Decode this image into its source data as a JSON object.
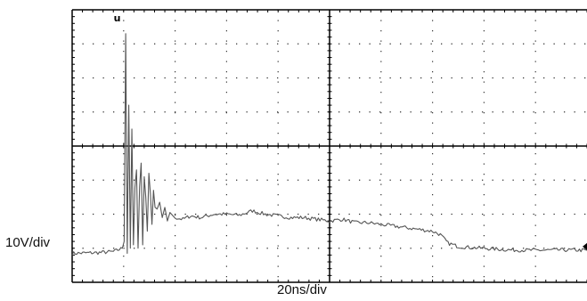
{
  "chart_data": {
    "type": "line",
    "title": "",
    "xlabel": "20ns/div",
    "ylabel": "10V/div",
    "grid": true,
    "grid_divisions": {
      "x": 10,
      "y": 8
    },
    "xlim": [
      0,
      200
    ],
    "ylim": [
      -40,
      40
    ],
    "x_unit": "ns",
    "y_unit": "V",
    "trigger_marker": "u",
    "colors": {
      "trace": "#555555",
      "grid_dots": "#333333",
      "frame": "#000000"
    },
    "series": [
      {
        "name": "",
        "x": [
          0,
          10,
          16,
          19.5,
          20.2,
          20.8,
          21.4,
          22.0,
          22.6,
          23.2,
          23.8,
          24.4,
          25.0,
          25.6,
          26.2,
          26.8,
          27.4,
          28.0,
          28.6,
          29.2,
          29.8,
          30.4,
          31.0,
          31.6,
          32.2,
          33.0,
          34.0,
          35.0,
          36.0,
          37.0,
          38.0,
          40,
          43,
          46,
          50,
          55,
          60,
          65,
          70,
          75,
          80,
          85,
          90,
          95,
          100,
          105,
          110,
          115,
          120,
          125,
          130,
          135,
          140,
          143,
          146,
          150,
          155,
          160,
          170,
          180,
          190,
          200
        ],
        "y": [
          -31.5,
          -31.3,
          -31.0,
          -30.0,
          -28.0,
          33.0,
          -31.5,
          12.0,
          -30.0,
          5.0,
          -29.0,
          -12.0,
          -7.0,
          -30.0,
          -12.0,
          -5.0,
          -29.0,
          -9.0,
          -15.0,
          -25.0,
          -8.0,
          -14.0,
          -23.0,
          -13.0,
          -18.0,
          -18.5,
          -16.5,
          -21.0,
          -18.0,
          -22.0,
          -19.5,
          -21.0,
          -21.5,
          -20.5,
          -21.0,
          -20.0,
          -20.0,
          -20.3,
          -19.0,
          -20.0,
          -20.5,
          -21.0,
          -21.0,
          -21.5,
          -22.0,
          -21.5,
          -22.5,
          -22.5,
          -23.0,
          -23.5,
          -24.0,
          -24.5,
          -25.0,
          -26.0,
          -28.5,
          -29.5,
          -29.8,
          -30.0,
          -30.5,
          -30.6,
          -30.5,
          -30.6
        ]
      }
    ]
  }
}
